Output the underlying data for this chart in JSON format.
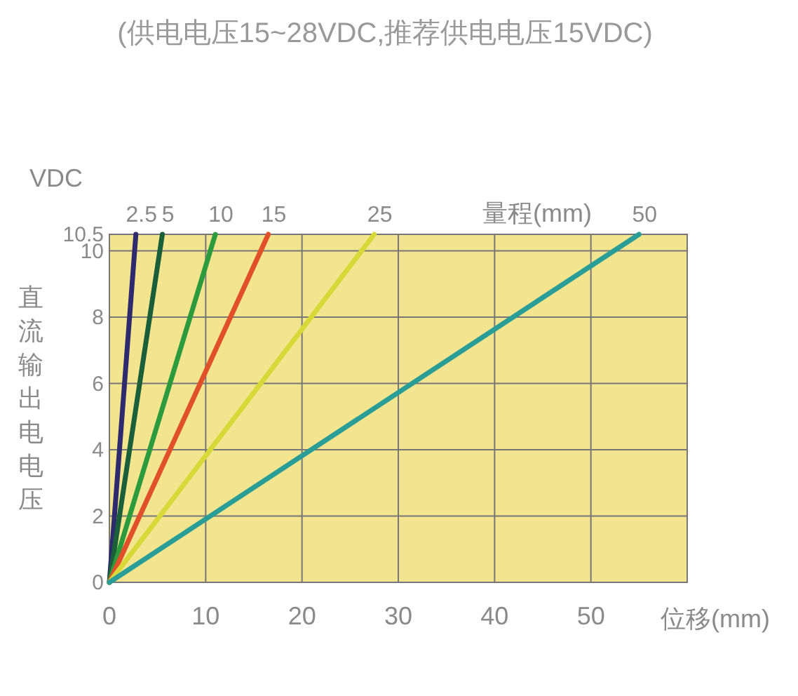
{
  "chart_data": {
    "type": "line",
    "title": "(供电电压15~28VDC,推荐供电电压15VDC)",
    "xlabel": "位移(mm)",
    "ylabel": "直流输出电电压",
    "legend_title": "量程(mm)",
    "annotations": [
      "VDC"
    ],
    "xlim": [
      0,
      60
    ],
    "ylim": [
      0,
      10.5
    ],
    "xticks": [
      0,
      10,
      20,
      30,
      40,
      50
    ],
    "yticks": [
      0,
      2,
      4,
      6,
      8,
      10,
      10.5
    ],
    "grid": true,
    "series": [
      {
        "name": "2.5",
        "color": "#2e2a6e",
        "x": [
          0,
          2.75
        ],
        "values": [
          0,
          10.5
        ]
      },
      {
        "name": "5",
        "color": "#1b5e3a",
        "x": [
          0,
          5.5
        ],
        "values": [
          0,
          10.5
        ]
      },
      {
        "name": "10",
        "color": "#2e9a3e",
        "x": [
          0,
          11
        ],
        "values": [
          0,
          10.5
        ]
      },
      {
        "name": "15",
        "color": "#e0502a",
        "x": [
          0,
          16.5
        ],
        "values": [
          0,
          10.5
        ]
      },
      {
        "name": "25",
        "color": "#d8d83a",
        "x": [
          0,
          27.5
        ],
        "values": [
          0,
          10.5
        ]
      },
      {
        "name": "50",
        "color": "#2a9e96",
        "x": [
          0,
          55
        ],
        "values": [
          0,
          10.5
        ]
      }
    ]
  }
}
